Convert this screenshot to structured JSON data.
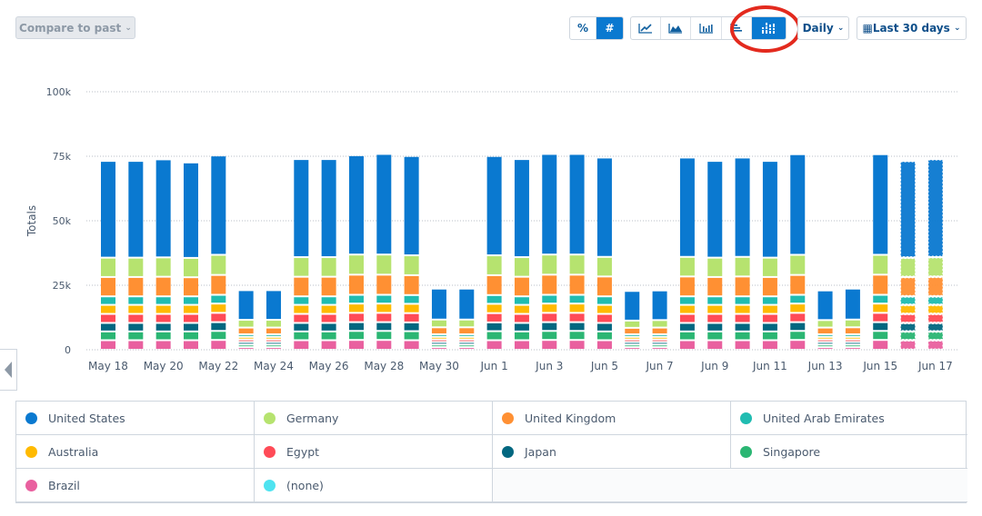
{
  "toolbar": {
    "compare_label": "Compare to past",
    "percent_label": "%",
    "number_label": "#",
    "interval": "Daily",
    "date_range": "Last 30 days",
    "chart_types": [
      "line-chart-icon",
      "area-chart-icon",
      "bar-chart-icon",
      "horizontal-bar-icon",
      "stacked-bar-icon"
    ],
    "selected_chart_type": "stacked-bar-icon",
    "selected_mode": "#"
  },
  "chart_data": {
    "type": "bar",
    "stacked": true,
    "ylabel": "Totals",
    "ylim": [
      0,
      100000
    ],
    "yticks": [
      "0",
      "25k",
      "50k",
      "75k",
      "100k"
    ],
    "ytick_values": [
      0,
      25000,
      50000,
      75000,
      100000
    ],
    "grid": true,
    "legend_placement": "bottom",
    "categories": [
      "May 18",
      "May 19",
      "May 20",
      "May 21",
      "May 22",
      "May 23",
      "May 24",
      "May 25",
      "May 26",
      "May 27",
      "May 28",
      "May 29",
      "May 30",
      "May 31",
      "Jun 1",
      "Jun 2",
      "Jun 3",
      "Jun 4",
      "Jun 5",
      "Jun 6",
      "Jun 7",
      "Jun 8",
      "Jun 9",
      "Jun 10",
      "Jun 11",
      "Jun 12",
      "Jun 13",
      "Jun 14",
      "Jun 15",
      "Jun 16",
      "Jun 17"
    ],
    "xtick_labels": [
      "May 18",
      "May 20",
      "May 22",
      "May 24",
      "May 26",
      "May 28",
      "May 30",
      "Jun 1",
      "Jun 3",
      "Jun 5",
      "Jun 7",
      "Jun 9",
      "Jun 11",
      "Jun 13",
      "Jun 15",
      "Jun 17"
    ],
    "incomplete": [
      "Jun 16",
      "Jun 17"
    ],
    "series": [
      {
        "name": "Brazil",
        "color": "#e9609f",
        "values": [
          3700,
          3700,
          3700,
          3700,
          3800,
          1000,
          1000,
          3700,
          3700,
          3800,
          3800,
          3700,
          1000,
          1000,
          3700,
          3700,
          3800,
          3800,
          3700,
          1000,
          1000,
          3700,
          3700,
          3700,
          3700,
          3800,
          1000,
          1000,
          3800,
          3700,
          3700
        ]
      },
      {
        "name": "Singapore",
        "color": "#2bb673",
        "values": [
          3400,
          3400,
          3400,
          3400,
          3500,
          1000,
          1000,
          3400,
          3400,
          3500,
          3500,
          3500,
          1000,
          1000,
          3500,
          3400,
          3500,
          3500,
          3400,
          1000,
          1000,
          3400,
          3400,
          3400,
          3400,
          3500,
          1000,
          1000,
          3500,
          3400,
          3400
        ]
      },
      {
        "name": "Japan",
        "color": "#026780",
        "values": [
          3300,
          3300,
          3300,
          3300,
          3400,
          1000,
          1000,
          3300,
          3300,
          3400,
          3400,
          3400,
          1000,
          1000,
          3400,
          3300,
          3400,
          3400,
          3300,
          1000,
          1000,
          3300,
          3300,
          3300,
          3300,
          3400,
          1000,
          1000,
          3400,
          3300,
          3300
        ]
      },
      {
        "name": "Egypt",
        "color": "#ff4b57",
        "values": [
          3500,
          3500,
          3500,
          3500,
          3600,
          1000,
          1000,
          3500,
          3500,
          3600,
          3600,
          3600,
          1000,
          1000,
          3600,
          3500,
          3600,
          3600,
          3500,
          1000,
          1000,
          3500,
          3500,
          3500,
          3500,
          3600,
          1000,
          1000,
          3600,
          3500,
          3500
        ]
      },
      {
        "name": "Australia",
        "color": "#ffba00",
        "values": [
          3500,
          3500,
          3500,
          3500,
          3600,
          1000,
          1000,
          3500,
          3500,
          3600,
          3600,
          3600,
          1000,
          1000,
          3600,
          3500,
          3600,
          3600,
          3500,
          1000,
          1000,
          3500,
          3500,
          3500,
          3500,
          3600,
          1000,
          1000,
          3600,
          3500,
          3500
        ]
      },
      {
        "name": "United Arab Emirates",
        "color": "#20bcb1",
        "values": [
          3300,
          3300,
          3300,
          3300,
          3400,
          1000,
          1000,
          3300,
          3300,
          3400,
          3400,
          3400,
          1000,
          1000,
          3400,
          3300,
          3400,
          3400,
          3300,
          1000,
          1000,
          3300,
          3300,
          3300,
          3300,
          3400,
          1000,
          1000,
          3400,
          3300,
          3300
        ]
      },
      {
        "name": "United Kingdom",
        "color": "#ff9033",
        "values": [
          7500,
          7500,
          7600,
          7400,
          7700,
          2600,
          2600,
          7600,
          7600,
          7800,
          7800,
          7700,
          2700,
          2700,
          7700,
          7600,
          7800,
          7800,
          7700,
          2500,
          2600,
          7700,
          7500,
          7700,
          7500,
          7700,
          2600,
          2700,
          7800,
          7500,
          7600
        ]
      },
      {
        "name": "Germany",
        "color": "#b6e36f",
        "values": [
          7500,
          7500,
          7500,
          7500,
          7800,
          3000,
          3000,
          7600,
          7600,
          7800,
          7800,
          7700,
          3000,
          3000,
          7700,
          7600,
          7800,
          7800,
          7600,
          2800,
          2900,
          7600,
          7500,
          7600,
          7500,
          7800,
          2900,
          3000,
          7700,
          7500,
          7600
        ]
      },
      {
        "name": "United States",
        "color": "#0a79d0",
        "values": [
          37500,
          37500,
          38000,
          37000,
          38500,
          11500,
          11500,
          38000,
          38000,
          38500,
          39000,
          38500,
          12000,
          12000,
          38500,
          38000,
          39000,
          39000,
          38500,
          11500,
          11500,
          38500,
          37500,
          38500,
          37500,
          39000,
          11500,
          12000,
          39000,
          37500,
          38000
        ]
      },
      {
        "name": "(none)",
        "color": "#4ee3f0",
        "values": [
          0,
          0,
          0,
          0,
          0,
          0,
          0,
          0,
          0,
          0,
          0,
          0,
          0,
          0,
          0,
          0,
          0,
          0,
          0,
          0,
          0,
          0,
          0,
          0,
          0,
          0,
          0,
          0,
          0,
          0,
          0
        ]
      }
    ]
  },
  "legend": [
    {
      "label": "United States",
      "color": "#0a79d0"
    },
    {
      "label": "Germany",
      "color": "#b6e36f"
    },
    {
      "label": "United Kingdom",
      "color": "#ff9033"
    },
    {
      "label": "United Arab Emirates",
      "color": "#20bcb1"
    },
    {
      "label": "Australia",
      "color": "#ffba00"
    },
    {
      "label": "Egypt",
      "color": "#ff4b57"
    },
    {
      "label": "Japan",
      "color": "#026780"
    },
    {
      "label": "Singapore",
      "color": "#2bb673"
    },
    {
      "label": "Brazil",
      "color": "#e9609f"
    },
    {
      "label": "(none)",
      "color": "#4ee3f0"
    }
  ]
}
